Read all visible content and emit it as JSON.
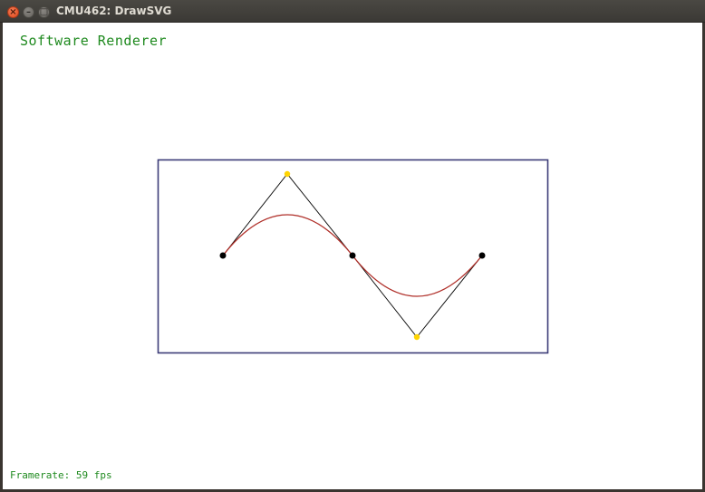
{
  "window": {
    "title": "CMU462: DrawSVG",
    "close_glyph": "×",
    "minimize_glyph": "–",
    "maximize_glyph": "□"
  },
  "canvas": {
    "renderer_label": "Software Renderer",
    "framerate_text": "Framerate: 59 fps"
  },
  "colors": {
    "frame_stroke": "#3c3c78",
    "curve_stroke": "#b0302a",
    "control_polygon_stroke": "#000000",
    "endpoint_fill": "#000000",
    "control_point_fill": "#ffd400",
    "label_green": "#1f8a1f"
  },
  "icons": {
    "close": "close-icon",
    "minimize": "minimize-icon",
    "maximize": "maximize-icon"
  }
}
